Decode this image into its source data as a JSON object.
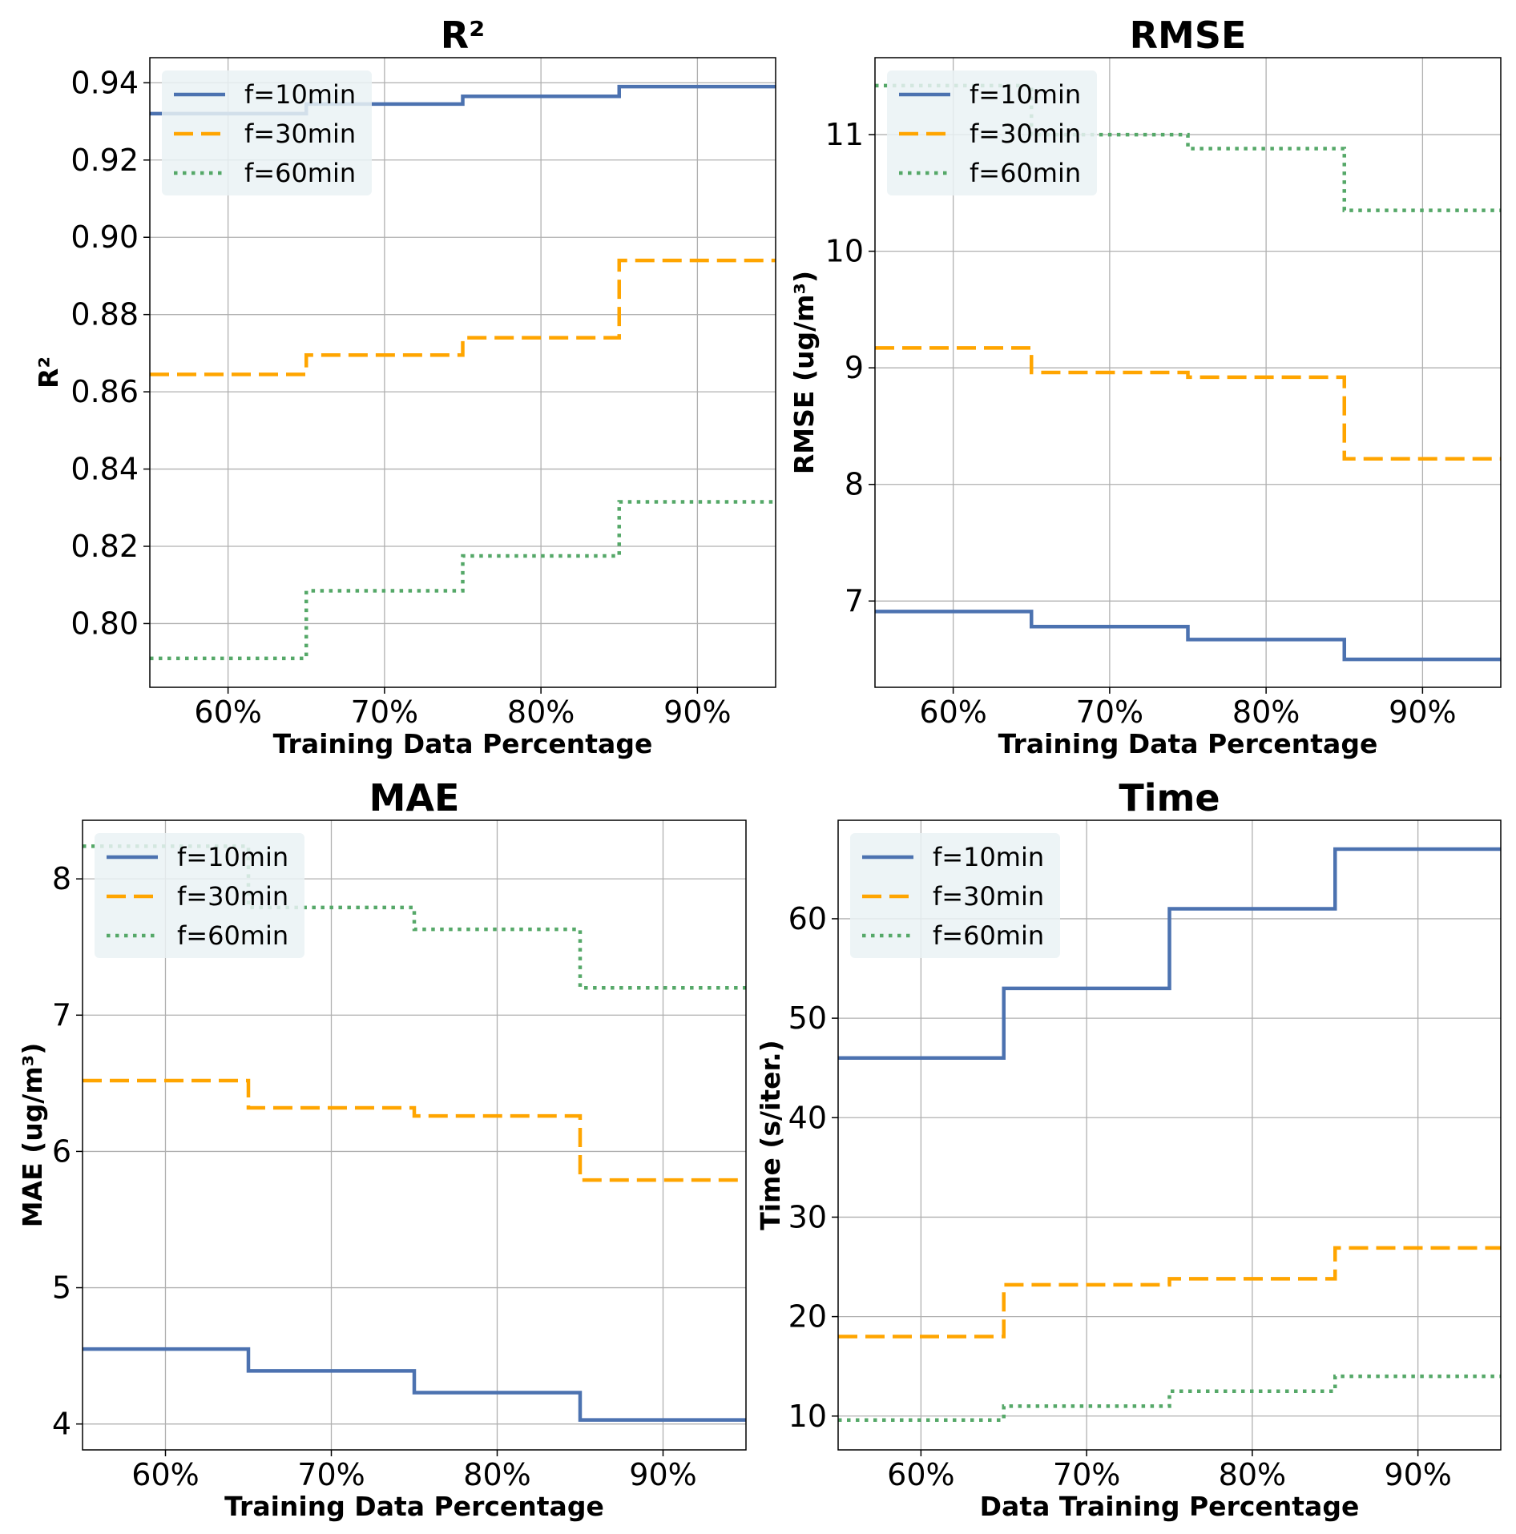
{
  "chart_data": [
    {
      "type": "line",
      "step": true,
      "title": "R²",
      "xlabel": "Training Data Percentage",
      "ylabel": "R²",
      "x": [
        55,
        65,
        75,
        85,
        95
      ],
      "xlim": [
        55,
        95
      ],
      "xticks": [
        60,
        70,
        80,
        90
      ],
      "xtick_labels": [
        "60%",
        "70%",
        "80%",
        "90%"
      ],
      "ylim": [
        0.7835,
        0.9465
      ],
      "yticks": [
        0.8,
        0.82,
        0.84,
        0.86,
        0.88,
        0.9,
        0.92,
        0.94
      ],
      "ytick_labels": [
        "0.80",
        "0.82",
        "0.84",
        "0.86",
        "0.88",
        "0.90",
        "0.92",
        "0.94"
      ],
      "grid": true,
      "legend": "top-left",
      "series": [
        {
          "name": "f=10min",
          "values": [
            0.932,
            0.9345,
            0.9365,
            0.939,
            0.939
          ]
        },
        {
          "name": "f=30min",
          "values": [
            0.8645,
            0.8695,
            0.874,
            0.894,
            0.894
          ]
        },
        {
          "name": "f=60min",
          "values": [
            0.791,
            0.8085,
            0.8175,
            0.8315,
            0.8315
          ]
        }
      ]
    },
    {
      "type": "line",
      "step": true,
      "title": "RMSE",
      "xlabel": "Training Data Percentage",
      "ylabel": "RMSE (ug/m³)",
      "x": [
        55,
        65,
        75,
        85,
        95
      ],
      "xlim": [
        55,
        95
      ],
      "xticks": [
        60,
        70,
        80,
        90
      ],
      "xtick_labels": [
        "60%",
        "70%",
        "80%",
        "90%"
      ],
      "ylim": [
        6.26,
        11.66
      ],
      "yticks": [
        7,
        8,
        9,
        10,
        11
      ],
      "ytick_labels": [
        "7",
        "8",
        "9",
        "10",
        "11"
      ],
      "grid": true,
      "legend": "top-left",
      "series": [
        {
          "name": "f=10min",
          "values": [
            6.91,
            6.78,
            6.67,
            6.5,
            6.5
          ]
        },
        {
          "name": "f=30min",
          "values": [
            9.17,
            8.96,
            8.92,
            8.22,
            8.22
          ]
        },
        {
          "name": "f=60min",
          "values": [
            11.42,
            11.0,
            10.88,
            10.35,
            10.35
          ]
        }
      ]
    },
    {
      "type": "line",
      "step": true,
      "title": "MAE",
      "xlabel": "Training Data Percentage",
      "ylabel": "MAE (ug/m³)",
      "x": [
        55,
        65,
        75,
        85,
        95
      ],
      "xlim": [
        55,
        95
      ],
      "xticks": [
        60,
        70,
        80,
        90
      ],
      "xtick_labels": [
        "60%",
        "70%",
        "80%",
        "90%"
      ],
      "ylim": [
        3.81,
        8.43
      ],
      "yticks": [
        4,
        5,
        6,
        7,
        8
      ],
      "ytick_labels": [
        "4",
        "5",
        "6",
        "7",
        "8"
      ],
      "grid": true,
      "legend": "top-left",
      "series": [
        {
          "name": "f=10min",
          "values": [
            4.55,
            4.39,
            4.23,
            4.03,
            4.03
          ]
        },
        {
          "name": "f=30min",
          "values": [
            6.52,
            6.32,
            6.26,
            5.79,
            5.79
          ]
        },
        {
          "name": "f=60min",
          "values": [
            8.24,
            7.79,
            7.63,
            7.2,
            7.2
          ]
        }
      ]
    },
    {
      "type": "line",
      "step": true,
      "title": "Time",
      "xlabel": "Data Training Percentage",
      "ylabel": "Time (s/iter.)",
      "x": [
        55,
        65,
        75,
        85,
        95
      ],
      "xlim": [
        55,
        95
      ],
      "xticks": [
        60,
        70,
        80,
        90
      ],
      "xtick_labels": [
        "60%",
        "70%",
        "80%",
        "90%"
      ],
      "ylim": [
        6.6,
        69.9
      ],
      "yticks": [
        10,
        20,
        30,
        40,
        50,
        60
      ],
      "ytick_labels": [
        "10",
        "20",
        "30",
        "40",
        "50",
        "60"
      ],
      "grid": true,
      "legend": "top-left",
      "series": [
        {
          "name": "f=10min",
          "values": [
            46.0,
            53.0,
            61.0,
            67.0,
            67.0
          ]
        },
        {
          "name": "f=30min",
          "values": [
            18.0,
            23.2,
            23.8,
            26.9,
            26.9
          ]
        },
        {
          "name": "f=60min",
          "values": [
            9.6,
            11.0,
            12.5,
            14.0,
            14.0
          ]
        }
      ]
    }
  ],
  "colors": {
    "series": [
      "#4c72b0",
      "#ffa500",
      "#55a868"
    ],
    "grid": "#b0b0b0",
    "legend_bg": "#eaf2f5"
  }
}
